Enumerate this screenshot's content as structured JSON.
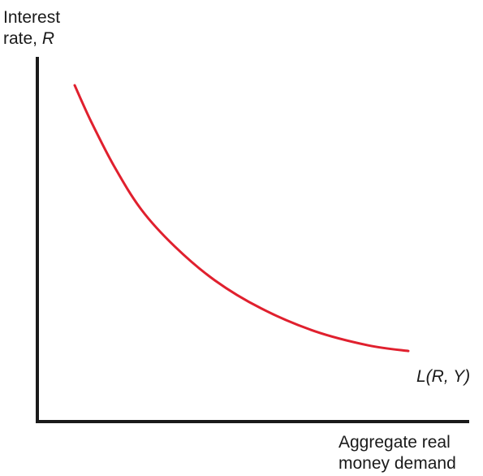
{
  "chart_data": {
    "type": "line",
    "title": "",
    "ylabel": {
      "line1": "Interest",
      "line2_prefix": "rate, ",
      "line2_var": "R"
    },
    "xlabel": {
      "line1": "Aggregate real",
      "line2": "money demand"
    },
    "series": [
      {
        "name": "L(R, Y)",
        "color": "#e0202e",
        "x": [
          0.0,
          0.05,
          0.12,
          0.2,
          0.3,
          0.42,
          0.56,
          0.72,
          0.88,
          1.0
        ],
        "y": [
          1.0,
          0.87,
          0.71,
          0.56,
          0.43,
          0.31,
          0.21,
          0.13,
          0.08,
          0.06
        ]
      }
    ],
    "xlim": [
      0,
      1
    ],
    "ylim": [
      0,
      1
    ],
    "axis_color": "#1a1a1a",
    "grid": false,
    "ticks": false
  }
}
